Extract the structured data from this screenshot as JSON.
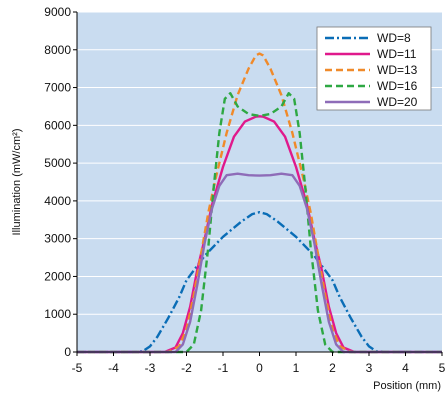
{
  "chart_data": {
    "type": "line",
    "title": "",
    "xlabel": "Position (mm)",
    "ylabel": "Illumination (mW/cm²)",
    "xlim": [
      -5,
      5
    ],
    "ylim": [
      0,
      9000
    ],
    "x_ticks": [
      -5,
      -4,
      -3,
      -2,
      -1,
      0,
      1,
      2,
      3,
      4,
      5
    ],
    "y_ticks": [
      0,
      1000,
      2000,
      3000,
      4000,
      5000,
      6000,
      7000,
      8000,
      9000
    ],
    "grid": "horizontal",
    "legend_position": "top-right",
    "plot_background": "#c9dcf0",
    "series": [
      {
        "name": "WD=8",
        "color": "#0a6db6",
        "dash": "dashdot",
        "points": [
          [
            -5,
            0
          ],
          [
            -3.5,
            0
          ],
          [
            -3.2,
            20
          ],
          [
            -3.0,
            150
          ],
          [
            -2.8,
            400
          ],
          [
            -2.5,
            900
          ],
          [
            -2.2,
            1450
          ],
          [
            -2.0,
            1900
          ],
          [
            -1.5,
            2550
          ],
          [
            -1.0,
            3050
          ],
          [
            -0.5,
            3450
          ],
          [
            -0.2,
            3650
          ],
          [
            0,
            3700
          ],
          [
            0.2,
            3650
          ],
          [
            0.5,
            3450
          ],
          [
            1.0,
            3050
          ],
          [
            1.5,
            2550
          ],
          [
            2.0,
            1900
          ],
          [
            2.2,
            1450
          ],
          [
            2.5,
            900
          ],
          [
            2.8,
            400
          ],
          [
            3.0,
            150
          ],
          [
            3.2,
            20
          ],
          [
            3.5,
            0
          ],
          [
            5,
            0
          ]
        ]
      },
      {
        "name": "WD=11",
        "color": "#e0198c",
        "dash": "solid",
        "points": [
          [
            -5,
            0
          ],
          [
            -2.6,
            0
          ],
          [
            -2.3,
            120
          ],
          [
            -2.1,
            500
          ],
          [
            -1.9,
            1200
          ],
          [
            -1.7,
            2200
          ],
          [
            -1.5,
            3000
          ],
          [
            -1.3,
            3900
          ],
          [
            -1.0,
            4900
          ],
          [
            -0.7,
            5700
          ],
          [
            -0.4,
            6100
          ],
          [
            -0.1,
            6230
          ],
          [
            0,
            6240
          ],
          [
            0.1,
            6230
          ],
          [
            0.4,
            6100
          ],
          [
            0.7,
            5700
          ],
          [
            1.0,
            4900
          ],
          [
            1.3,
            3900
          ],
          [
            1.5,
            3000
          ],
          [
            1.7,
            2200
          ],
          [
            1.9,
            1200
          ],
          [
            2.1,
            500
          ],
          [
            2.3,
            120
          ],
          [
            2.6,
            0
          ],
          [
            5,
            0
          ]
        ]
      },
      {
        "name": "WD=13",
        "color": "#f08a2a",
        "dash": "dashed",
        "points": [
          [
            -5,
            0
          ],
          [
            -2.5,
            0
          ],
          [
            -2.2,
            150
          ],
          [
            -2.0,
            600
          ],
          [
            -1.8,
            1500
          ],
          [
            -1.6,
            2600
          ],
          [
            -1.4,
            3700
          ],
          [
            -1.2,
            4600
          ],
          [
            -0.9,
            5800
          ],
          [
            -0.6,
            6800
          ],
          [
            -0.3,
            7500
          ],
          [
            -0.1,
            7850
          ],
          [
            0,
            7900
          ],
          [
            0.1,
            7850
          ],
          [
            0.3,
            7500
          ],
          [
            0.6,
            6800
          ],
          [
            0.9,
            5800
          ],
          [
            1.2,
            4600
          ],
          [
            1.4,
            3700
          ],
          [
            1.6,
            2600
          ],
          [
            1.8,
            1500
          ],
          [
            2.0,
            600
          ],
          [
            2.2,
            150
          ],
          [
            2.5,
            0
          ],
          [
            5,
            0
          ]
        ]
      },
      {
        "name": "WD=16",
        "color": "#2ea843",
        "dash": "dashed",
        "points": [
          [
            -5,
            0
          ],
          [
            -2.0,
            0
          ],
          [
            -1.8,
            200
          ],
          [
            -1.6,
            1100
          ],
          [
            -1.4,
            2800
          ],
          [
            -1.25,
            4400
          ],
          [
            -1.1,
            5800
          ],
          [
            -0.95,
            6700
          ],
          [
            -0.8,
            6850
          ],
          [
            -0.6,
            6500
          ],
          [
            -0.3,
            6300
          ],
          [
            0,
            6250
          ],
          [
            0.3,
            6300
          ],
          [
            0.6,
            6500
          ],
          [
            0.8,
            6850
          ],
          [
            0.95,
            6700
          ],
          [
            1.1,
            5800
          ],
          [
            1.25,
            4400
          ],
          [
            1.4,
            2800
          ],
          [
            1.6,
            1100
          ],
          [
            1.8,
            200
          ],
          [
            2.0,
            0
          ],
          [
            5,
            0
          ]
        ]
      },
      {
        "name": "WD=20",
        "color": "#8e6cb8",
        "dash": "solid",
        "points": [
          [
            -5,
            0
          ],
          [
            -2.3,
            0
          ],
          [
            -2.1,
            200
          ],
          [
            -1.9,
            800
          ],
          [
            -1.7,
            1800
          ],
          [
            -1.5,
            2900
          ],
          [
            -1.3,
            3800
          ],
          [
            -1.1,
            4400
          ],
          [
            -0.9,
            4680
          ],
          [
            -0.6,
            4720
          ],
          [
            -0.3,
            4680
          ],
          [
            0,
            4670
          ],
          [
            0.3,
            4680
          ],
          [
            0.6,
            4720
          ],
          [
            0.9,
            4680
          ],
          [
            1.1,
            4400
          ],
          [
            1.3,
            3800
          ],
          [
            1.5,
            2900
          ],
          [
            1.7,
            1800
          ],
          [
            1.9,
            800
          ],
          [
            2.1,
            200
          ],
          [
            2.3,
            0
          ],
          [
            5,
            0
          ]
        ]
      }
    ]
  }
}
